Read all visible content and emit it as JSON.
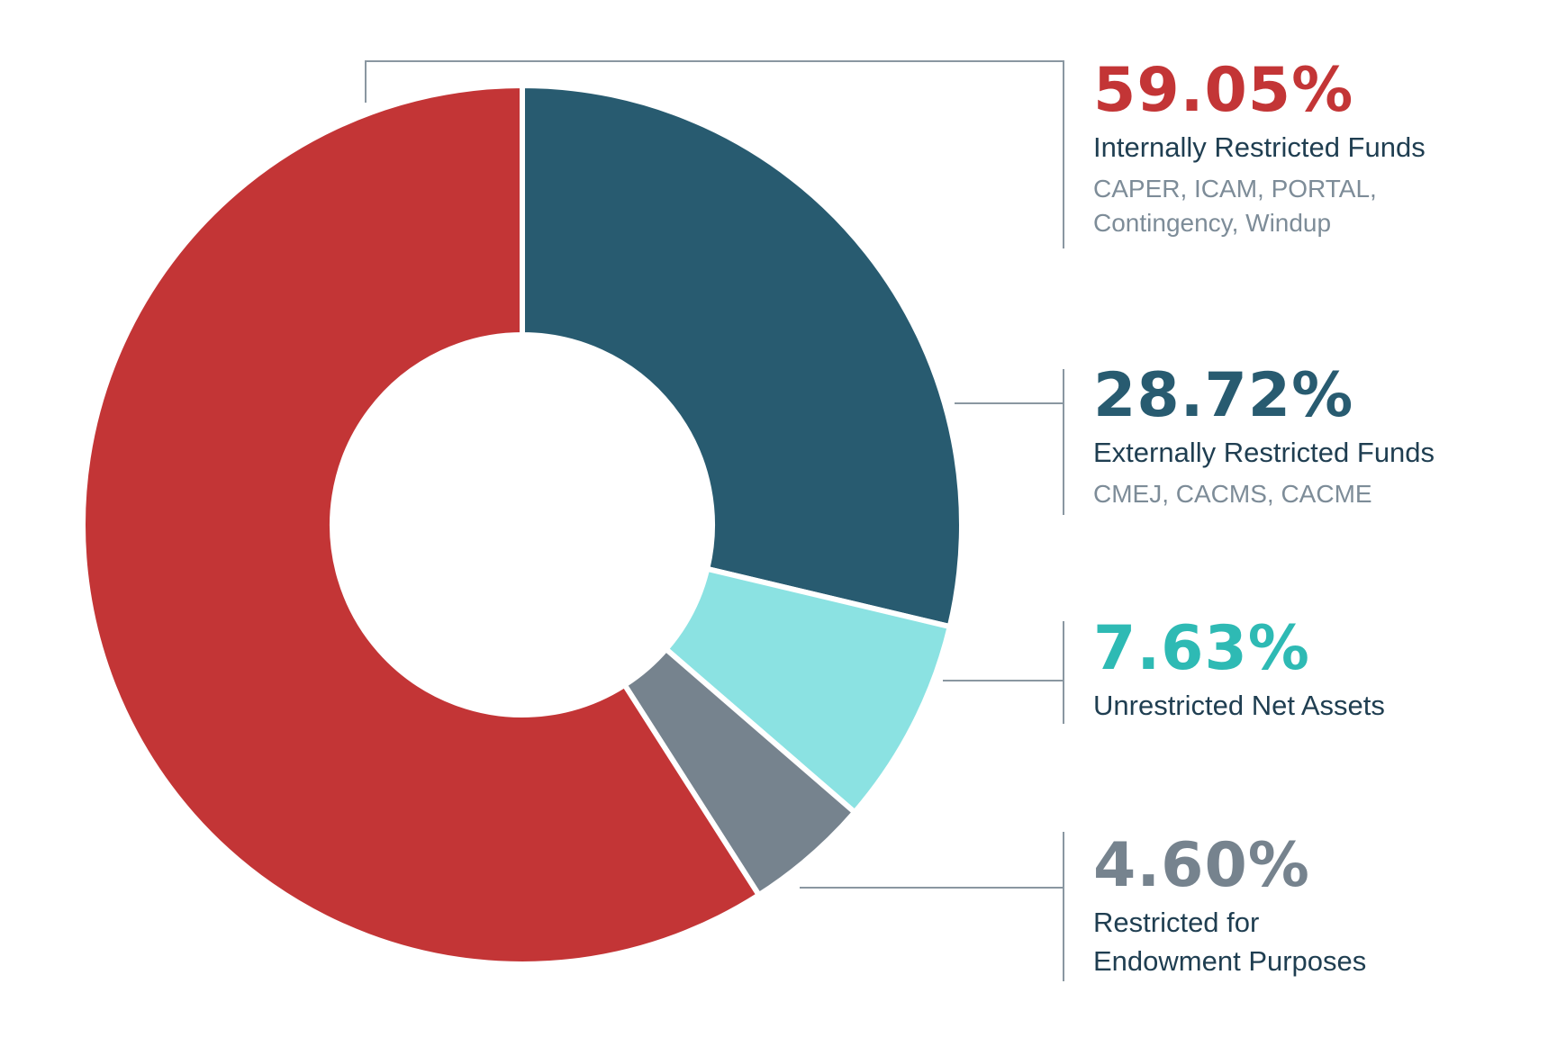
{
  "chart_data": {
    "type": "pie",
    "style": "donut",
    "slices": [
      {
        "label": "Internally Restricted Funds",
        "value": 59.05,
        "display": "59.05%",
        "sublabel": [
          "CAPER, ICAM, PORTAL,",
          "Contingency, Windup"
        ],
        "color": "#c33536"
      },
      {
        "label": "Externally Restricted Funds",
        "value": 28.72,
        "display": "28.72%",
        "sublabel": [
          "CMEJ, CACMS, CACME"
        ],
        "color": "#285b70"
      },
      {
        "label": "Unrestricted Net Assets",
        "value": 7.63,
        "display": "7.63%",
        "sublabel": [],
        "color": "#8be2e2"
      },
      {
        "label": [
          "Restricted for",
          "Endowment Purposes"
        ],
        "value": 4.6,
        "display": "4.60%",
        "sublabel": [],
        "color": "#76838e"
      }
    ],
    "text_colors": {
      "Internally Restricted Funds": "#c33536",
      "Externally Restricted Funds": "#285b70",
      "Unrestricted Net Assets": "#2ebab4",
      "Restricted for Endowment Purposes": "#76838e"
    },
    "legend_placement": "right",
    "leader_color": "#8a97a1"
  }
}
